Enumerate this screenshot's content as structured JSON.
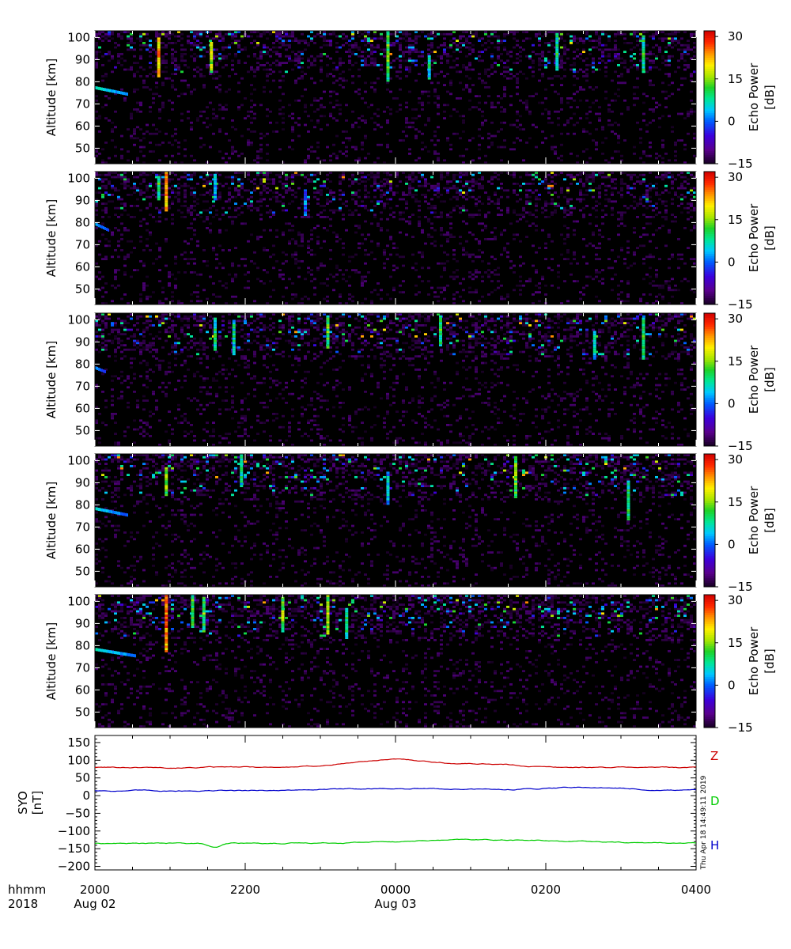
{
  "radar_panels": {
    "ylabel": "Altitude [km]",
    "yticks": [
      50,
      60,
      70,
      80,
      90,
      100
    ],
    "yrange": [
      43,
      103
    ],
    "colorbar": {
      "label_line1": "Echo Power",
      "label_line2": "[dB]",
      "ticks": [
        30,
        15,
        0,
        -15
      ],
      "range": [
        -15,
        32
      ]
    },
    "panels": [
      {
        "id": 1,
        "seed": 11,
        "density": 1.0,
        "features": [
          {
            "type": "layer",
            "t0": 20.0,
            "t1": 20.45,
            "alt0": 78,
            "alt1": 75,
            "level": 5
          },
          {
            "type": "col",
            "t": 20.85,
            "a0": 82,
            "a1": 100,
            "level": 24
          },
          {
            "type": "col",
            "t": 21.55,
            "a0": 84,
            "a1": 98,
            "level": 18
          },
          {
            "type": "col",
            "t": 23.9,
            "a0": 80,
            "a1": 103,
            "level": 15
          },
          {
            "type": "col",
            "t": 24.45,
            "a0": 81,
            "a1": 92,
            "level": 8
          },
          {
            "type": "col",
            "t": 26.15,
            "a0": 85,
            "a1": 102,
            "level": 10
          },
          {
            "type": "col",
            "t": 27.3,
            "a0": 84,
            "a1": 101,
            "level": 12
          }
        ]
      },
      {
        "id": 2,
        "seed": 23,
        "density": 0.9,
        "features": [
          {
            "type": "layer",
            "t0": 20.0,
            "t1": 20.18,
            "alt0": 80,
            "alt1": 77,
            "level": 2
          },
          {
            "type": "col",
            "t": 20.95,
            "a0": 85,
            "a1": 103,
            "level": 26
          },
          {
            "type": "col",
            "t": 20.85,
            "a0": 90,
            "a1": 101,
            "level": 12
          },
          {
            "type": "col",
            "t": 21.6,
            "a0": 90,
            "a1": 102,
            "level": 6
          },
          {
            "type": "col",
            "t": 22.8,
            "a0": 83,
            "a1": 95,
            "level": 2
          }
        ]
      },
      {
        "id": 3,
        "seed": 37,
        "density": 1.1,
        "features": [
          {
            "type": "layer",
            "t0": 20.0,
            "t1": 20.15,
            "alt0": 79,
            "alt1": 77,
            "level": 1
          },
          {
            "type": "col",
            "t": 21.85,
            "a0": 84,
            "a1": 100,
            "level": 9
          },
          {
            "type": "col",
            "t": 21.6,
            "a0": 86,
            "a1": 101,
            "level": 10
          },
          {
            "type": "col",
            "t": 23.1,
            "a0": 87,
            "a1": 102,
            "level": 14
          },
          {
            "type": "col",
            "t": 24.6,
            "a0": 88,
            "a1": 102,
            "level": 12
          },
          {
            "type": "col",
            "t": 27.3,
            "a0": 82,
            "a1": 101,
            "level": 14
          },
          {
            "type": "col",
            "t": 26.65,
            "a0": 82,
            "a1": 95,
            "level": 8
          }
        ]
      },
      {
        "id": 4,
        "seed": 53,
        "density": 1.15,
        "features": [
          {
            "type": "layer",
            "t0": 20.0,
            "t1": 20.45,
            "alt0": 79,
            "alt1": 76,
            "level": 4
          },
          {
            "type": "col",
            "t": 20.95,
            "a0": 84,
            "a1": 97,
            "level": 16
          },
          {
            "type": "col",
            "t": 21.95,
            "a0": 88,
            "a1": 103,
            "level": 10
          },
          {
            "type": "col",
            "t": 23.9,
            "a0": 80,
            "a1": 95,
            "level": 6
          },
          {
            "type": "col",
            "t": 25.6,
            "a0": 83,
            "a1": 102,
            "level": 15
          },
          {
            "type": "col",
            "t": 27.1,
            "a0": 73,
            "a1": 91,
            "level": 12
          }
        ]
      },
      {
        "id": 5,
        "seed": 71,
        "density": 1.2,
        "features": [
          {
            "type": "layer",
            "t0": 20.0,
            "t1": 20.55,
            "alt0": 79,
            "alt1": 76,
            "level": 5
          },
          {
            "type": "col",
            "t": 20.95,
            "a0": 77,
            "a1": 103,
            "level": 28
          },
          {
            "type": "col",
            "t": 21.3,
            "a0": 88,
            "a1": 103,
            "level": 14
          },
          {
            "type": "col",
            "t": 21.45,
            "a0": 86,
            "a1": 102,
            "level": 14
          },
          {
            "type": "col",
            "t": 22.5,
            "a0": 86,
            "a1": 102,
            "level": 16
          },
          {
            "type": "col",
            "t": 23.1,
            "a0": 85,
            "a1": 103,
            "level": 18
          },
          {
            "type": "col",
            "t": 23.35,
            "a0": 83,
            "a1": 97,
            "level": 10
          }
        ]
      }
    ]
  },
  "magnetometer": {
    "ylabel_line1": "SYO",
    "ylabel_line2": "[nT]",
    "yticks": [
      150,
      100,
      50,
      0,
      -50,
      -100,
      -150,
      -200
    ],
    "yrange": [
      -210,
      170
    ],
    "series": [
      {
        "name": "Z",
        "color": "#cc0000",
        "base": 80,
        "bumps": [
          {
            "t": 24.0,
            "amp": 22,
            "w": 0.8
          },
          {
            "t": 25.3,
            "amp": 8,
            "w": 0.5
          }
        ]
      },
      {
        "name": "D",
        "color": "#00cc00",
        "base": -135,
        "bumps": [
          {
            "t": 21.6,
            "amp": -13,
            "w": 0.12
          },
          {
            "t": 25.2,
            "amp": 10,
            "w": 1.6
          }
        ]
      },
      {
        "name": "H",
        "color": "#0000cc",
        "base": 14,
        "bumps": [
          {
            "t": 24.0,
            "amp": 6,
            "w": 1.2
          },
          {
            "t": 26.5,
            "amp": 10,
            "w": 0.8
          }
        ]
      }
    ],
    "legend_order": [
      "Z",
      "D",
      "H"
    ],
    "timestamp": "Thu Apr 18 14:49:11 2019"
  },
  "xaxis": {
    "trange_hours": [
      20,
      28
    ],
    "minor_tick_hours": 0.5,
    "ticks": [
      {
        "t": 20,
        "label": "2000",
        "date": "Aug 02"
      },
      {
        "t": 22,
        "label": "2200",
        "date": ""
      },
      {
        "t": 24,
        "label": "0000",
        "date": "Aug 03"
      },
      {
        "t": 26,
        "label": "0200",
        "date": ""
      },
      {
        "t": 28,
        "label": "0400",
        "date": ""
      }
    ],
    "row_label_hhmm": "hhmm",
    "row_label_year": "2018"
  }
}
